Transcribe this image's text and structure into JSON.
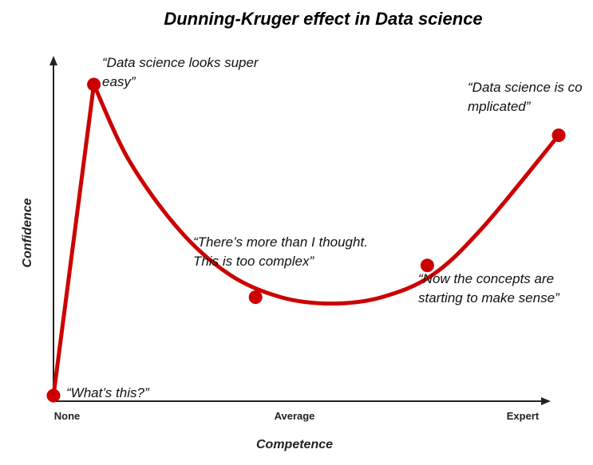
{
  "chart_data": {
    "type": "line",
    "title": "Dunning-Kruger effect in Data science",
    "xlabel": "Competence",
    "ylabel": "Confidence",
    "x_ticks": [
      "None",
      "Average",
      "Expert"
    ],
    "xlim": [
      0,
      10
    ],
    "ylim": [
      0,
      10
    ],
    "grid": false,
    "legend": "none",
    "color": "#cc0000",
    "curve": {
      "x": [
        0,
        0.8,
        1.5,
        2.5,
        3.5,
        4.5,
        5.5,
        6.5,
        7.5,
        8.5,
        10
      ],
      "y": [
        0,
        9.8,
        7.4,
        5.2,
        3.8,
        3.1,
        2.9,
        3.1,
        3.8,
        5.3,
        8.2
      ]
    },
    "points": [
      {
        "x": 0,
        "y": 0,
        "label": "“What’s this?”"
      },
      {
        "x": 0.8,
        "y": 9.8,
        "label": "“Data science looks super easy”"
      },
      {
        "x": 4,
        "y": 3.1,
        "label": "“There’s more than I thought. This is too complex”"
      },
      {
        "x": 7.4,
        "y": 4.1,
        "label": "“Now the concepts are starting to make sense”"
      },
      {
        "x": 10,
        "y": 8.2,
        "label": "“Data science is complicated”"
      }
    ]
  }
}
